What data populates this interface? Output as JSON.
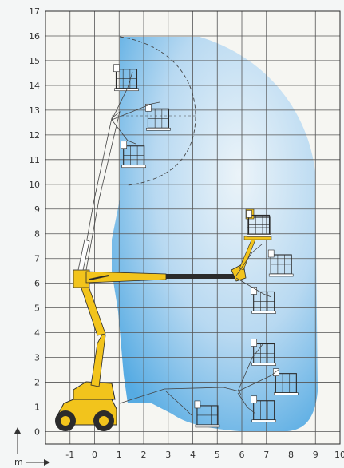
{
  "diagram": {
    "x_ticks": [
      "-1",
      "0",
      "1",
      "2",
      "3",
      "4",
      "5",
      "6",
      "7",
      "8",
      "9",
      "10"
    ],
    "y_ticks": [
      "0",
      "1",
      "2",
      "3",
      "4",
      "5",
      "6",
      "7",
      "8",
      "9",
      "10",
      "11",
      "12",
      "13",
      "14",
      "15",
      "16",
      "17"
    ],
    "unit_label": "m",
    "x_range": [
      -2,
      10
    ],
    "y_range": [
      -0.5,
      17
    ],
    "grid": true,
    "colors": {
      "envelope": "#3a9ee0",
      "machine": "#f2c41c",
      "boom_dark": "#2b2b2b",
      "grid": "#555555",
      "outline": "#2a2a2a"
    },
    "platform_positions": [
      {
        "x": 1.3,
        "y": 14.2
      },
      {
        "x": 2.6,
        "y": 12.6
      },
      {
        "x": 1.6,
        "y": 11.1
      },
      {
        "x": 6.7,
        "y": 8.3
      },
      {
        "x": 7.6,
        "y": 6.7
      },
      {
        "x": 6.9,
        "y": 5.2
      },
      {
        "x": 6.9,
        "y": 3.1
      },
      {
        "x": 7.8,
        "y": 1.9
      },
      {
        "x": 6.9,
        "y": 0.8
      },
      {
        "x": 4.6,
        "y": 0.6
      }
    ]
  }
}
